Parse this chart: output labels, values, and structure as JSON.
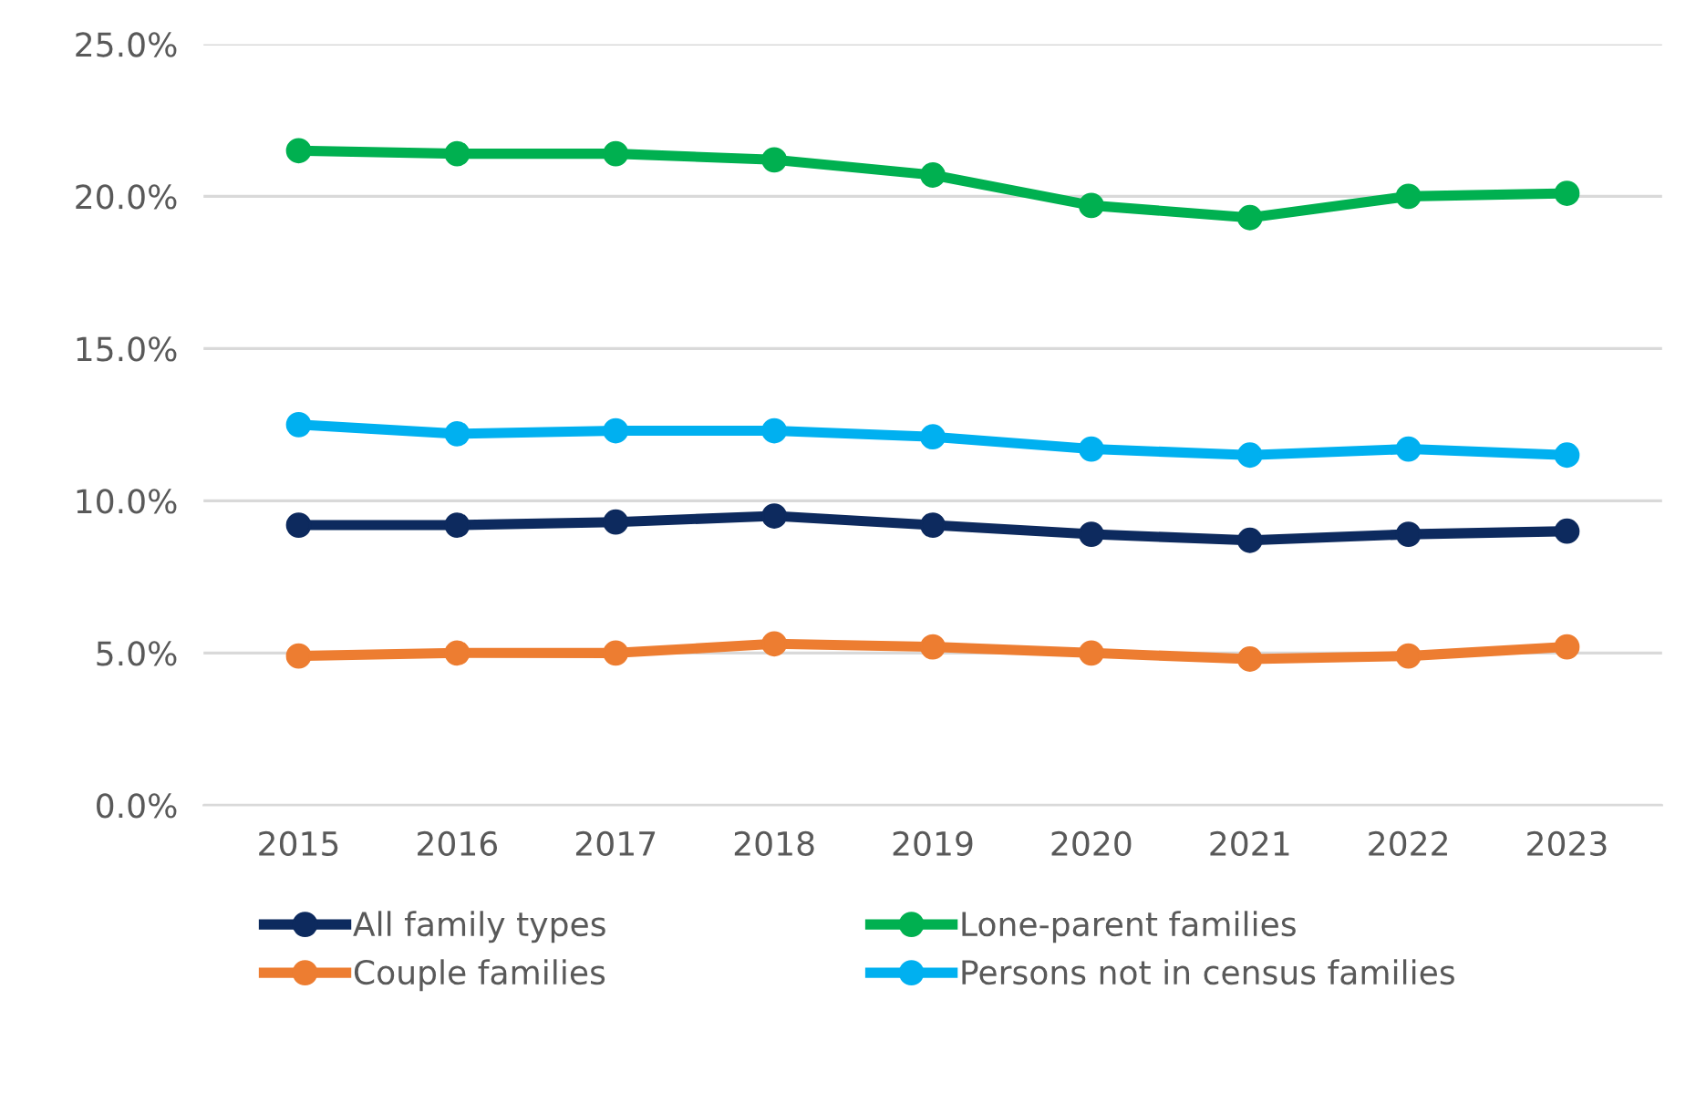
{
  "chart_data": {
    "type": "line",
    "categories": [
      "2015",
      "2016",
      "2017",
      "2018",
      "2019",
      "2020",
      "2021",
      "2022",
      "2023"
    ],
    "series": [
      {
        "name": "All family types",
        "color": "#0d2a5e",
        "values": [
          9.2,
          9.2,
          9.3,
          9.5,
          9.2,
          8.9,
          8.7,
          8.9,
          9.0
        ]
      },
      {
        "name": "Couple families",
        "color": "#ed7d31",
        "values": [
          4.9,
          5.0,
          5.0,
          5.3,
          5.2,
          5.0,
          4.8,
          4.9,
          5.2
        ]
      },
      {
        "name": "Lone-parent families",
        "color": "#00b050",
        "values": [
          21.5,
          21.4,
          21.4,
          21.2,
          20.7,
          19.7,
          19.3,
          20.0,
          20.1
        ]
      },
      {
        "name": "Persons not in census families",
        "color": "#00b0f0",
        "values": [
          12.5,
          12.2,
          12.3,
          12.3,
          12.1,
          11.7,
          11.5,
          11.7,
          11.5
        ]
      }
    ],
    "ylim": [
      0,
      25
    ],
    "yticks": [
      {
        "value": 0,
        "label": "0.0%"
      },
      {
        "value": 5,
        "label": "5.0%"
      },
      {
        "value": 10,
        "label": "10.0%"
      },
      {
        "value": 15,
        "label": "15.0%"
      },
      {
        "value": 20,
        "label": "20.0%"
      },
      {
        "value": 25,
        "label": "25.0%"
      }
    ],
    "grid": "y",
    "legend": "bottom",
    "marker": "circle",
    "line_style": "solid"
  }
}
